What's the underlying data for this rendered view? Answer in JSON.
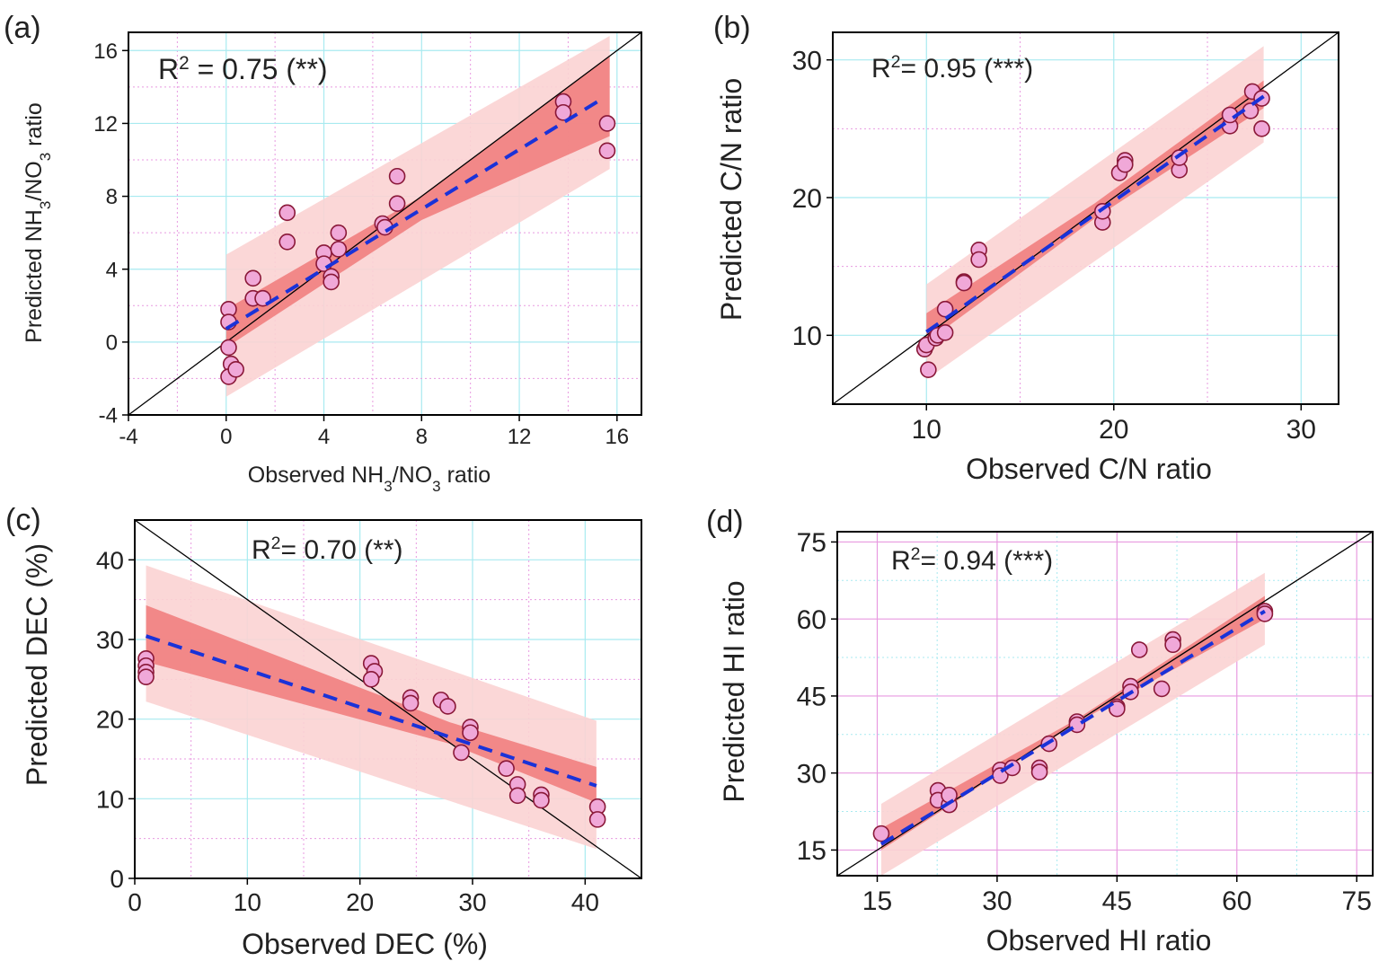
{
  "chart_data": [
    {
      "panel": "(a)",
      "type": "scatter",
      "xlabel": {
        "pre": "Observed NH",
        "s1": "3",
        "mid": "/NO",
        "s2": "3",
        "post": " ratio"
      },
      "ylabel": {
        "pre": "Predicted NH",
        "s1": "3",
        "mid": "/NO",
        "s2": "3",
        "post": " ratio"
      },
      "r2": {
        "prefix": "R",
        "sup": "2",
        "text": " = 0.75 (**)"
      },
      "xlim": [
        -4,
        17
      ],
      "ylim": [
        -4,
        17
      ],
      "xticks": [
        -4,
        0,
        4,
        8,
        12,
        16
      ],
      "yticks": [
        -4,
        0,
        4,
        8,
        12,
        16
      ],
      "xtick_labels": [
        "-4",
        "0",
        "4",
        "8",
        "12",
        "16"
      ],
      "ytick_labels": [
        "-4",
        "0",
        "4",
        "8",
        "12",
        "16"
      ],
      "fit": {
        "intercept": 0.73,
        "slope": 0.82,
        "x_range": [
          0,
          15.2
        ]
      },
      "band_conf": [
        [
          0,
          -0.3,
          1.8
        ],
        [
          8,
          6.7,
          8.0
        ],
        [
          15.7,
          11.3,
          15.7
        ]
      ],
      "band_pred": [
        [
          0,
          -3.0,
          4.8
        ],
        [
          15.7,
          9.5,
          16.8
        ]
      ],
      "points": [
        [
          0.1,
          1.8
        ],
        [
          0.1,
          1.1
        ],
        [
          0.1,
          -0.3
        ],
        [
          0.2,
          -1.2
        ],
        [
          0.1,
          -1.9
        ],
        [
          0.4,
          -1.5
        ],
        [
          1.1,
          3.5
        ],
        [
          1.1,
          2.4
        ],
        [
          1.5,
          2.4
        ],
        [
          2.5,
          7.1
        ],
        [
          2.5,
          5.5
        ],
        [
          4.0,
          4.9
        ],
        [
          4.0,
          4.3
        ],
        [
          4.3,
          3.6
        ],
        [
          4.3,
          3.3
        ],
        [
          4.6,
          5.1
        ],
        [
          4.6,
          6.0
        ],
        [
          6.4,
          6.5
        ],
        [
          6.5,
          6.3
        ],
        [
          7.0,
          9.1
        ],
        [
          7.0,
          7.6
        ],
        [
          13.8,
          13.2
        ],
        [
          13.8,
          12.6
        ],
        [
          15.6,
          12.0
        ],
        [
          15.6,
          10.5
        ]
      ],
      "colors": {
        "marker_fill": "#f0a8d8",
        "marker_edge": "#8a1838",
        "fit": "#1a32d8",
        "conf": "#f07a7a",
        "pred": "#fbd3d3",
        "grid_major": "#a8eaf0",
        "grid_minor": "#e89ae0",
        "identity": "#000000"
      }
    },
    {
      "panel": "(b)",
      "type": "scatter",
      "xlabel": {
        "pre": "Observed C/N ratio"
      },
      "ylabel": {
        "pre": "Predicted C/N ratio"
      },
      "r2": {
        "prefix": "R",
        "sup": "2",
        "text": "= 0.95 (***)"
      },
      "xlim": [
        5,
        32
      ],
      "ylim": [
        5,
        32
      ],
      "xticks": [
        10,
        20,
        30
      ],
      "yticks": [
        10,
        20,
        30
      ],
      "xtick_labels": [
        "10",
        "20",
        "30"
      ],
      "ytick_labels": [
        "10",
        "20",
        "30"
      ],
      "fit": {
        "intercept": 0.75,
        "slope": 0.95,
        "x_range": [
          10,
          28
        ]
      },
      "band_conf": [
        [
          10,
          9.5,
          11.6
        ],
        [
          19,
          18.5,
          19.6
        ],
        [
          28,
          26.5,
          28.5
        ]
      ],
      "band_pred": [
        [
          10,
          6.8,
          13.7
        ],
        [
          28,
          24.0,
          31.0
        ]
      ],
      "points": [
        [
          9.9,
          9.0
        ],
        [
          10.0,
          9.3
        ],
        [
          10.1,
          7.5
        ],
        [
          10.5,
          9.8
        ],
        [
          10.6,
          10.0
        ],
        [
          11.0,
          10.2
        ],
        [
          11.0,
          11.9
        ],
        [
          12.0,
          13.9
        ],
        [
          12.0,
          13.8
        ],
        [
          12.8,
          16.2
        ],
        [
          12.8,
          15.5
        ],
        [
          19.4,
          18.2
        ],
        [
          19.4,
          19.0
        ],
        [
          20.3,
          21.8
        ],
        [
          20.6,
          22.7
        ],
        [
          20.6,
          22.4
        ],
        [
          23.5,
          22.0
        ],
        [
          23.5,
          22.9
        ],
        [
          26.2,
          25.2
        ],
        [
          26.2,
          26.0
        ],
        [
          27.3,
          26.3
        ],
        [
          27.4,
          27.7
        ],
        [
          27.9,
          27.2
        ],
        [
          27.9,
          25.0
        ]
      ],
      "colors": {
        "marker_fill": "#f0a8d8",
        "marker_edge": "#8a1838",
        "fit": "#1a32d8",
        "conf": "#f07a7a",
        "pred": "#fbd3d3",
        "grid_major": "#a8eaf0",
        "grid_minor": "#e89ae0",
        "identity": "#000000"
      }
    },
    {
      "panel": "(c)",
      "type": "scatter",
      "xlabel": {
        "pre": "Observed DEC (%)"
      },
      "ylabel": {
        "pre": "Predicted DEC (%)"
      },
      "r2": {
        "prefix": "R",
        "sup": "2",
        "text": "= 0.70 (**)"
      },
      "xlim": [
        0,
        45
      ],
      "ylim": [
        0,
        45
      ],
      "xticks": [
        0,
        10,
        20,
        30,
        40
      ],
      "yticks": [
        0,
        10,
        20,
        30,
        40
      ],
      "xtick_labels": [
        "0",
        "10",
        "20",
        "30",
        "40"
      ],
      "ytick_labels": [
        "0",
        "10",
        "20",
        "30",
        "40"
      ],
      "identity": "descending",
      "fit": {
        "intercept": 30.9,
        "slope": -0.47,
        "x_range": [
          1,
          41
        ]
      },
      "band_conf": [
        [
          1,
          27.2,
          34.3
        ],
        [
          28,
          16.9,
          19.6
        ],
        [
          41,
          9.5,
          14.0
        ]
      ],
      "band_pred": [
        [
          1,
          22.2,
          39.3
        ],
        [
          41,
          3.7,
          19.8
        ]
      ],
      "points": [
        [
          1.0,
          27.6
        ],
        [
          1.0,
          26.7
        ],
        [
          1.0,
          25.9
        ],
        [
          1.0,
          25.3
        ],
        [
          21.0,
          27.0
        ],
        [
          21.3,
          26.0
        ],
        [
          21.0,
          25.0
        ],
        [
          24.5,
          22.7
        ],
        [
          24.5,
          22.0
        ],
        [
          27.2,
          22.4
        ],
        [
          27.8,
          21.6
        ],
        [
          29.0,
          15.8
        ],
        [
          29.8,
          19.0
        ],
        [
          29.8,
          18.3
        ],
        [
          33.0,
          13.8
        ],
        [
          34.0,
          11.8
        ],
        [
          34.0,
          10.4
        ],
        [
          36.1,
          10.5
        ],
        [
          36.1,
          9.8
        ],
        [
          41.1,
          9.0
        ],
        [
          41.1,
          7.4
        ]
      ],
      "colors": {
        "marker_fill": "#f0a8d8",
        "marker_edge": "#8a1838",
        "fit": "#1a32d8",
        "conf": "#f07a7a",
        "pred": "#fbd3d3",
        "grid_major": "#a8eaf0",
        "grid_minor": "#e89ae0",
        "identity": "#000000"
      }
    },
    {
      "panel": "(d)",
      "type": "scatter",
      "xlabel": {
        "pre": "Observed HI ratio"
      },
      "ylabel": {
        "pre": "Predicted HI ratio"
      },
      "r2": {
        "prefix": "R",
        "sup": "2",
        "text": "= 0.94 (***)"
      },
      "xlim": [
        10,
        77
      ],
      "ylim": [
        10,
        77
      ],
      "xticks": [
        15,
        30,
        45,
        60,
        75
      ],
      "yticks": [
        15,
        30,
        45,
        60,
        75
      ],
      "xtick_labels": [
        "15",
        "30",
        "45",
        "60",
        "75"
      ],
      "ytick_labels": [
        "15",
        "30",
        "45",
        "60",
        "75"
      ],
      "grid_swap": true,
      "fit": {
        "intercept": 1.5,
        "slope": 0.945,
        "x_range": [
          15.5,
          63.5
        ]
      },
      "band_conf": [
        [
          15.5,
          15.0,
          19.2
        ],
        [
          40,
          39.8,
          40.5
        ],
        [
          63.5,
          60.0,
          64.5
        ]
      ],
      "band_pred": [
        [
          15.5,
          10.0,
          24.0
        ],
        [
          63.5,
          55.0,
          69.0
        ]
      ],
      "points": [
        [
          15.5,
          18.2
        ],
        [
          22.6,
          26.6
        ],
        [
          22.6,
          24.7
        ],
        [
          24.0,
          23.8
        ],
        [
          24.0,
          25.7
        ],
        [
          30.4,
          30.6
        ],
        [
          30.4,
          29.5
        ],
        [
          31.9,
          31.0
        ],
        [
          35.3,
          31.0
        ],
        [
          35.3,
          30.2
        ],
        [
          36.5,
          35.7
        ],
        [
          40.0,
          40.0
        ],
        [
          40.0,
          39.4
        ],
        [
          45.0,
          42.9
        ],
        [
          45.0,
          42.5
        ],
        [
          46.7,
          46.9
        ],
        [
          46.7,
          45.8
        ],
        [
          47.8,
          54.0
        ],
        [
          50.6,
          46.4
        ],
        [
          52.0,
          56.0
        ],
        [
          52.0,
          55.0
        ],
        [
          63.5,
          61.5
        ],
        [
          63.5,
          61.0
        ]
      ],
      "colors": {
        "marker_fill": "#f0a8d8",
        "marker_edge": "#8a1838",
        "fit": "#1a32d8",
        "conf": "#f07a7a",
        "pred": "#fbd3d3",
        "grid_major": "#a8eaf0",
        "grid_minor": "#e89ae0",
        "identity": "#000000"
      }
    }
  ]
}
